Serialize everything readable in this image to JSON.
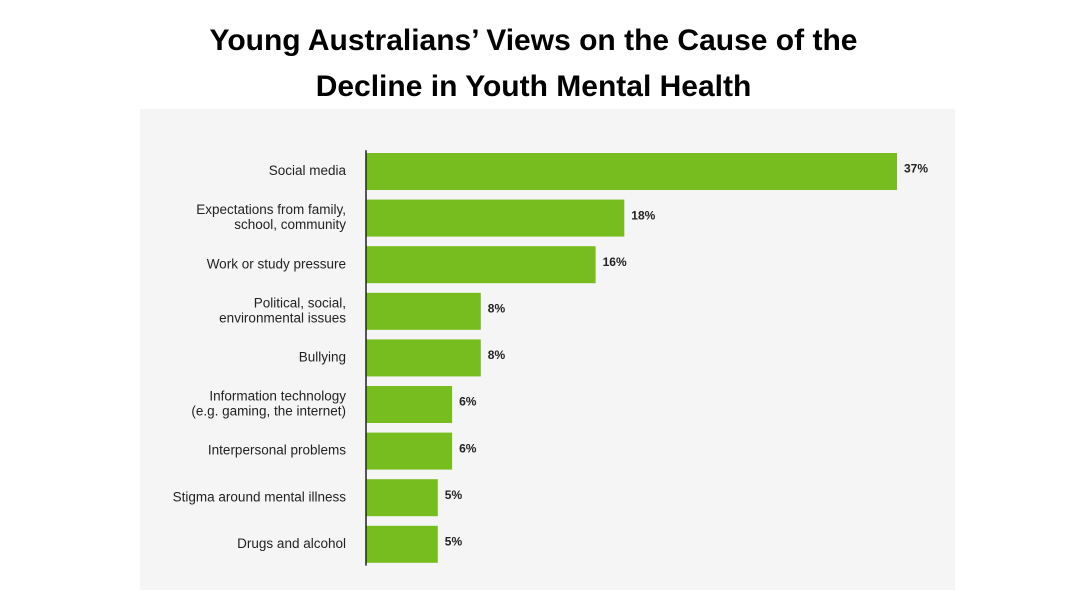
{
  "chart_data": {
    "type": "bar",
    "orientation": "horizontal",
    "title_lines": [
      "Young Australians’ Views on the Cause of the",
      "Decline in Youth Mental Health"
    ],
    "categories": [
      [
        "Social media"
      ],
      [
        "Expectations from family,",
        "school, community"
      ],
      [
        "Work or study pressure"
      ],
      [
        "Political, social,",
        "environmental issues"
      ],
      [
        "Bullying"
      ],
      [
        "Information technology",
        "(e.g. gaming, the internet)"
      ],
      [
        "Interpersonal problems"
      ],
      [
        "Stigma around mental illness"
      ],
      [
        "Drugs and alcohol"
      ]
    ],
    "values": [
      37,
      18,
      16,
      8,
      8,
      6,
      6,
      5,
      5
    ],
    "value_labels": [
      "37%",
      "18%",
      "16%",
      "8%",
      "8%",
      "6%",
      "6%",
      "5%",
      "5%"
    ],
    "unit": "%",
    "xlim": [
      0,
      37
    ],
    "grid": false,
    "legend": "none",
    "bar_color": "#78bd20",
    "panel_color": "#f4f5f4"
  }
}
